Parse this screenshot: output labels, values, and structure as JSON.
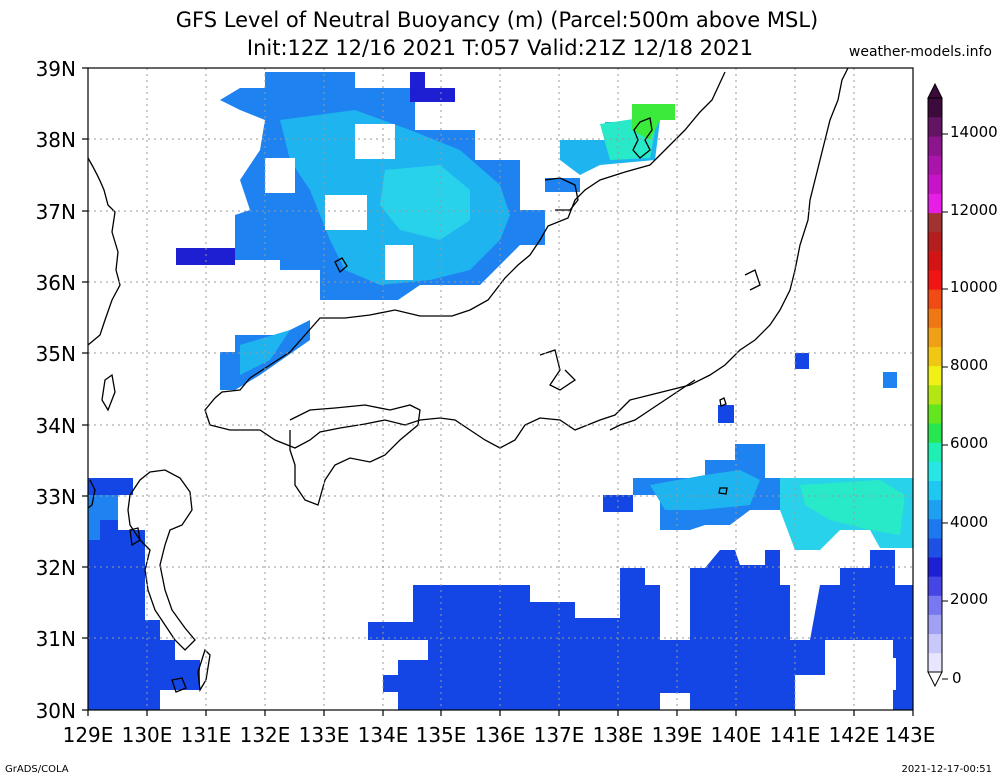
{
  "title": {
    "line1": "GFS Level of Neutral Buoyancy (m) (Parcel:500m above MSL)",
    "line2": "Init:12Z 12/16 2021 T:057 Valid:21Z 12/18 2021"
  },
  "site": "weather-models.info",
  "footer": {
    "left": "GrADS/COLA",
    "right": "2021-12-17-00:51"
  },
  "map": {
    "lon_labels": [
      "129E",
      "130E",
      "131E",
      "132E",
      "133E",
      "134E",
      "135E",
      "136E",
      "137E",
      "138E",
      "139E",
      "140E",
      "141E",
      "142E",
      "143E"
    ],
    "lat_labels": [
      "39N",
      "38N",
      "37N",
      "36N",
      "35N",
      "34N",
      "33N",
      "32N",
      "31N",
      "30N"
    ],
    "lon_range": [
      129,
      143
    ],
    "lat_range": [
      30,
      39
    ],
    "grid": "dotted"
  },
  "colorbar": {
    "labels": [
      "14000",
      "12000",
      "10000",
      "8000",
      "6000",
      "4000",
      "2000",
      "0"
    ],
    "colors": [
      "#e6e6ff",
      "#c8c8fa",
      "#a0a0f5",
      "#7878f0",
      "#4646e6",
      "#1e1ed2",
      "#1e50e6",
      "#1e78f0",
      "#1ea0f0",
      "#1ec8f0",
      "#28e6e6",
      "#1ef0b4",
      "#28e650",
      "#64e61e",
      "#b4e614",
      "#f0f014",
      "#f0c814",
      "#f0a014",
      "#f07814",
      "#f04b14",
      "#f01414",
      "#d21414",
      "#b41e1e",
      "#a03232",
      "#e61ee6",
      "#c814c8",
      "#aa14aa",
      "#8c148c",
      "#641464",
      "#3c0a3c"
    ]
  },
  "fields": {
    "deep_blue": "#1446e6",
    "mid_blue": "#1e82f0",
    "light_blue": "#1eb4f0",
    "cyan": "#28d2ea",
    "teal": "#28eac8",
    "green": "#3cea3c",
    "navy": "#1e1ed2"
  }
}
